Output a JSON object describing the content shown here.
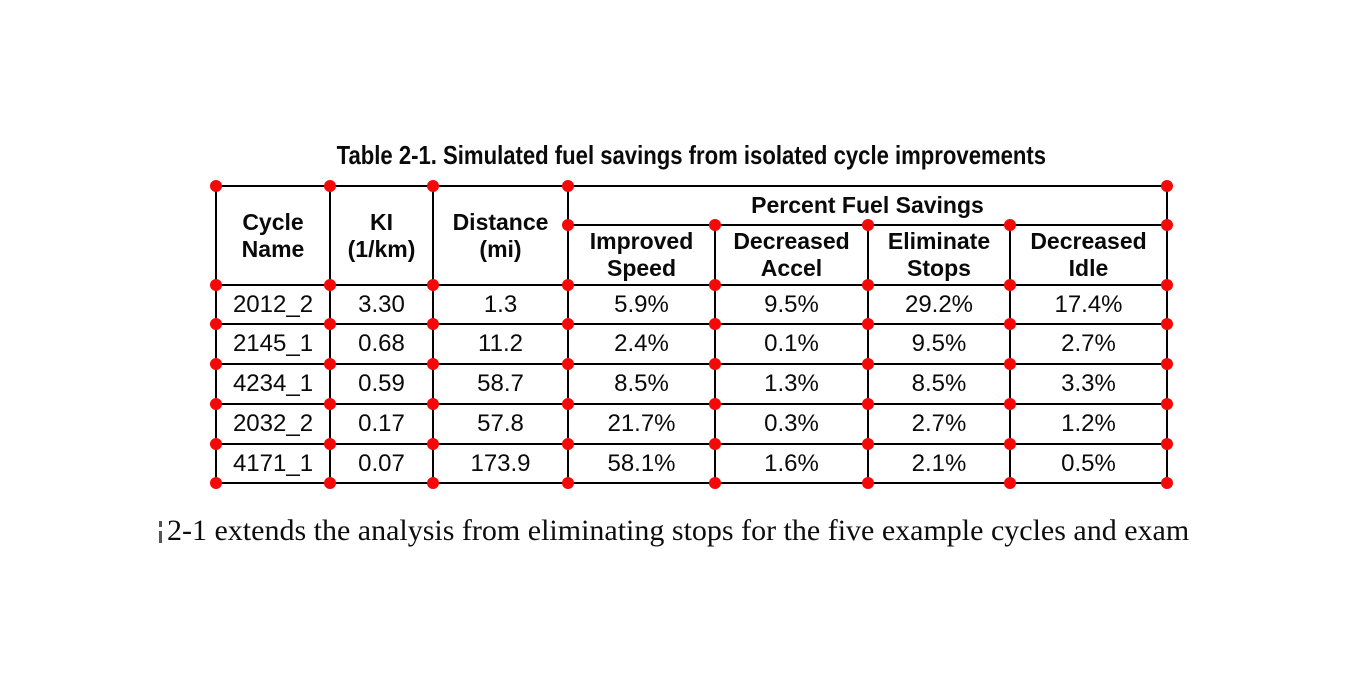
{
  "page": {
    "caption": "Table 2-1. Simulated fuel savings from isolated cycle improvements",
    "body_text": "2-1 extends the analysis from eliminating stops for the five example cycles and exam"
  },
  "table": {
    "group_header": "Percent Fuel Savings",
    "column_headers": [
      "Cycle\nName",
      "KI\n(1/km)",
      "Distance\n(mi)",
      "Improved\nSpeed",
      "Decreased\nAccel",
      "Eliminate\nStops",
      "Decreased\nIdle"
    ],
    "rows": [
      [
        "2012_2",
        "3.30",
        "1.3",
        "5.9%",
        "9.5%",
        "29.2%",
        "17.4%"
      ],
      [
        "2145_1",
        "0.68",
        "11.2",
        "2.4%",
        "0.1%",
        "9.5%",
        "2.7%"
      ],
      [
        "4234_1",
        "0.59",
        "58.7",
        "8.5%",
        "1.3%",
        "8.5%",
        "3.3%"
      ],
      [
        "2032_2",
        "0.17",
        "57.8",
        "21.7%",
        "0.3%",
        "2.7%",
        "1.2%"
      ],
      [
        "4171_1",
        "0.07",
        "173.9",
        "58.1%",
        "1.6%",
        "2.1%",
        "0.5%"
      ]
    ]
  },
  "annotations": {
    "dot_color": "#f50808"
  }
}
